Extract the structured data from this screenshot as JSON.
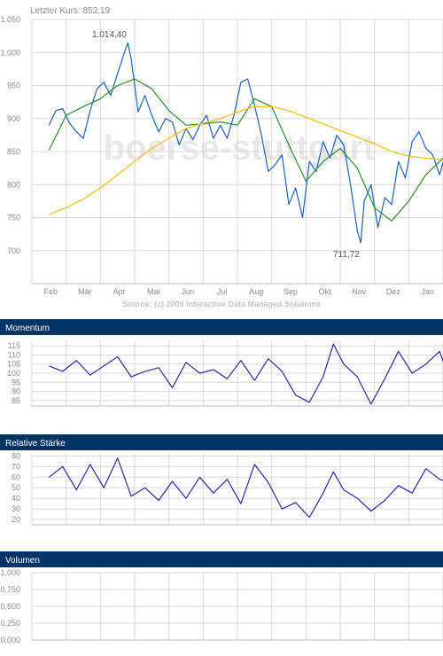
{
  "colors": {
    "header_bg": "#003366",
    "header_text": "#ffffff",
    "grid": "#d8d8d8",
    "axis_text": "#888888",
    "price_line": "#1f5fb8",
    "ma_green": "#2a8a2a",
    "ma_yellow": "#f0c000",
    "indicator_line": "#3a1fa0",
    "watermark": "#e8e8e8"
  },
  "price_panel": {
    "last_price_label": "Letzter Kurs: 852,19",
    "watermark": "boerse-stuttgart",
    "source": "Source: (c) 2009 Interactive Data Managed Solutions",
    "high_label": "1.014,40",
    "low_label": "711,72"
  },
  "momentum_panel": {
    "title": "Momentum"
  },
  "rsi_panel": {
    "title": "Relative Stärke"
  },
  "volume_panel": {
    "title": "Volumen"
  },
  "chart_data": [
    {
      "type": "line",
      "x_tick_labels": [
        "Feb",
        "Mär",
        "Apr",
        "Mai",
        "Jun",
        "Jul",
        "Aug",
        "Sep",
        "Okt",
        "Nov",
        "Dez",
        "Jan"
      ],
      "y_tick_labels": [
        "1.050",
        "1.000",
        "950",
        "900",
        "850",
        "800",
        "750",
        "700"
      ],
      "y_ticks": [
        1050,
        1000,
        950,
        900,
        850,
        800,
        750,
        700
      ],
      "ylim": [
        650,
        1050
      ],
      "grid": true,
      "annotations": [
        {
          "text": "1.014,40",
          "x": 2.3,
          "y": 1014.4
        },
        {
          "text": "711,72",
          "x": 9.1,
          "y": 711.72
        }
      ],
      "series": [
        {
          "role": "price",
          "x": [
            0,
            0.2,
            0.4,
            0.6,
            0.8,
            1.0,
            1.2,
            1.4,
            1.6,
            1.8,
            2.0,
            2.2,
            2.3,
            2.4,
            2.6,
            2.8,
            3.0,
            3.2,
            3.4,
            3.6,
            3.8,
            4.0,
            4.2,
            4.4,
            4.6,
            4.8,
            5.0,
            5.2,
            5.4,
            5.6,
            5.8,
            6.0,
            6.2,
            6.4,
            6.6,
            6.8,
            7.0,
            7.2,
            7.4,
            7.6,
            7.8,
            8.0,
            8.2,
            8.4,
            8.6,
            8.8,
            9.0,
            9.1,
            9.2,
            9.4,
            9.6,
            9.8,
            10.0,
            10.2,
            10.4,
            10.6,
            10.8,
            11.0,
            11.2,
            11.4,
            11.6
          ],
          "y": [
            890,
            912,
            915,
            893,
            880,
            870,
            912,
            945,
            955,
            935,
            968,
            1000,
            1014.4,
            990,
            910,
            935,
            905,
            880,
            900,
            895,
            860,
            885,
            868,
            890,
            905,
            870,
            890,
            870,
            905,
            955,
            960,
            920,
            875,
            820,
            830,
            845,
            770,
            795,
            750,
            835,
            820,
            865,
            840,
            875,
            860,
            800,
            730,
            711.72,
            775,
            800,
            735,
            780,
            770,
            835,
            810,
            865,
            880,
            855,
            845,
            815,
            852.19
          ],
          "yrange": [
            711.72,
            1014.4
          ]
        },
        {
          "role": "moving-average-short",
          "x": [
            0,
            0.5,
            1.0,
            1.5,
            2.0,
            2.5,
            3.0,
            3.5,
            4.0,
            4.5,
            5.0,
            5.5,
            6.0,
            6.5,
            7.0,
            7.5,
            8.0,
            8.5,
            9.0,
            9.5,
            10.0,
            10.5,
            11.0,
            11.5,
            11.7
          ],
          "y": [
            852,
            905,
            918,
            930,
            950,
            960,
            945,
            912,
            890,
            892,
            895,
            890,
            930,
            918,
            860,
            805,
            835,
            855,
            825,
            765,
            745,
            775,
            815,
            840,
            852
          ]
        },
        {
          "role": "moving-average-long",
          "x": [
            0,
            0.5,
            1.0,
            1.5,
            2.0,
            2.5,
            3.0,
            3.5,
            4.0,
            4.5,
            5.0,
            5.5,
            6.0,
            6.5,
            7.0,
            7.5,
            8.0,
            8.5,
            9.0,
            9.5,
            10.0,
            10.5,
            11.0,
            11.5,
            11.7
          ],
          "y": [
            755,
            765,
            778,
            795,
            815,
            835,
            855,
            870,
            885,
            893,
            900,
            910,
            918,
            918,
            912,
            902,
            892,
            882,
            872,
            862,
            850,
            843,
            840,
            838,
            840
          ]
        }
      ]
    },
    {
      "type": "line",
      "y_tick_labels": [
        "115",
        "110",
        "105",
        "100",
        "95",
        "90",
        "85"
      ],
      "y_ticks": [
        115,
        110,
        105,
        100,
        95,
        90,
        85
      ],
      "ylim": [
        82,
        118
      ],
      "grid": true,
      "series": [
        {
          "role": "momentum",
          "x": [
            0,
            0.4,
            0.8,
            1.2,
            1.6,
            2.0,
            2.4,
            2.8,
            3.2,
            3.6,
            4.0,
            4.4,
            4.8,
            5.2,
            5.6,
            6.0,
            6.4,
            6.8,
            7.2,
            7.6,
            8.0,
            8.3,
            8.6,
            9.0,
            9.4,
            9.8,
            10.2,
            10.6,
            11.0,
            11.4,
            11.7
          ],
          "y": [
            104,
            101,
            107,
            99,
            104,
            109,
            98,
            101,
            103,
            92,
            106,
            100,
            102,
            97,
            107,
            96,
            108,
            101,
            88,
            84,
            98,
            116,
            105,
            98,
            83,
            97,
            112,
            100,
            105,
            112,
            96
          ]
        }
      ]
    },
    {
      "type": "line",
      "y_tick_labels": [
        "80",
        "70",
        "60",
        "50",
        "40",
        "30",
        "20"
      ],
      "y_ticks": [
        80,
        70,
        60,
        50,
        40,
        30,
        20
      ],
      "ylim": [
        15,
        82
      ],
      "grid": true,
      "series": [
        {
          "role": "rsi",
          "x": [
            0,
            0.4,
            0.8,
            1.2,
            1.6,
            2.0,
            2.4,
            2.8,
            3.2,
            3.6,
            4.0,
            4.4,
            4.8,
            5.2,
            5.6,
            6.0,
            6.4,
            6.8,
            7.2,
            7.6,
            8.0,
            8.3,
            8.6,
            9.0,
            9.4,
            9.8,
            10.2,
            10.6,
            11.0,
            11.4,
            11.7
          ],
          "y": [
            60,
            70,
            48,
            72,
            50,
            78,
            42,
            50,
            38,
            56,
            40,
            60,
            45,
            58,
            35,
            72,
            55,
            30,
            36,
            22,
            45,
            65,
            48,
            40,
            28,
            38,
            52,
            45,
            68,
            58,
            55
          ]
        }
      ]
    },
    {
      "type": "line",
      "y_tick_labels": [
        "1,000",
        "0,750",
        "0,500",
        "0,250",
        "0,000"
      ],
      "y_ticks": [
        1.0,
        0.75,
        0.5,
        0.25,
        0.0
      ],
      "ylim": [
        0,
        1.0
      ],
      "grid": true,
      "series": []
    }
  ]
}
